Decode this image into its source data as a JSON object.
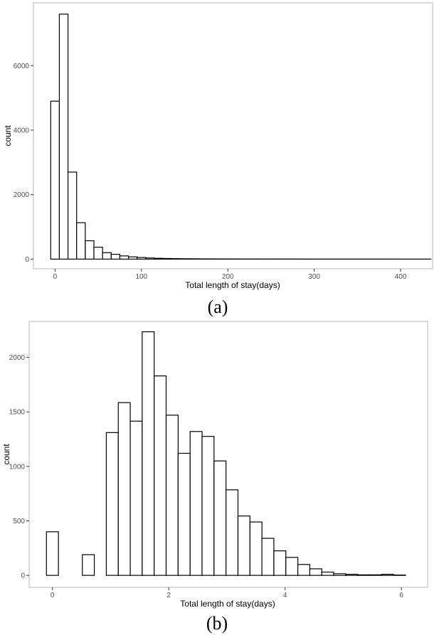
{
  "chart_data": [
    {
      "type": "bar",
      "caption": "(a)",
      "xlabel": "Total length of stay(days)",
      "ylabel": "count",
      "bin_width": 10,
      "bin_start": -5,
      "x": [
        0,
        10,
        20,
        30,
        40,
        50,
        60,
        70,
        80,
        90,
        100,
        110,
        120,
        130,
        140,
        150,
        160,
        170,
        180,
        190,
        200,
        210,
        220,
        230,
        240,
        250,
        260,
        270,
        280,
        290,
        300,
        310,
        320,
        330,
        340,
        350,
        360,
        370,
        380,
        390,
        400,
        410,
        420,
        430
      ],
      "values": [
        4900,
        7600,
        2700,
        1130,
        570,
        370,
        200,
        150,
        100,
        70,
        50,
        35,
        25,
        20,
        15,
        12,
        10,
        8,
        7,
        6,
        5,
        5,
        4,
        4,
        3,
        3,
        3,
        3,
        3,
        3,
        2,
        2,
        2,
        2,
        2,
        2,
        2,
        2,
        2,
        2,
        1,
        1,
        1,
        1
      ],
      "xticks": [
        0,
        100,
        200,
        300,
        400
      ],
      "yticks": [
        0,
        2000,
        4000,
        6000
      ],
      "xlim": [
        -25,
        437
      ],
      "ylim": [
        -300,
        7950
      ]
    },
    {
      "type": "bar",
      "caption": "(b)",
      "xlabel": "Total length of stay(days)",
      "ylabel": "count",
      "bin_width": 0.2058,
      "bin_start": -0.1029,
      "x": [
        0,
        0.206,
        0.412,
        0.617,
        0.823,
        1.029,
        1.235,
        1.441,
        1.646,
        1.852,
        2.058,
        2.264,
        2.47,
        2.675,
        2.881,
        3.087,
        3.293,
        3.499,
        3.704,
        3.91,
        4.116,
        4.322,
        4.528,
        4.733,
        4.939,
        5.145,
        5.351,
        5.557,
        5.762,
        5.968
      ],
      "values": [
        400,
        0,
        0,
        190,
        0,
        1310,
        1585,
        1415,
        2235,
        1830,
        1470,
        1120,
        1320,
        1275,
        1050,
        785,
        545,
        490,
        340,
        225,
        165,
        100,
        60,
        30,
        15,
        10,
        5,
        5,
        10,
        3
      ],
      "xticks": [
        0,
        2,
        4,
        6
      ],
      "yticks": [
        0,
        500,
        1000,
        1500,
        2000
      ],
      "xlim": [
        -0.4,
        6.45
      ],
      "ylim": [
        -110,
        2330
      ]
    }
  ]
}
